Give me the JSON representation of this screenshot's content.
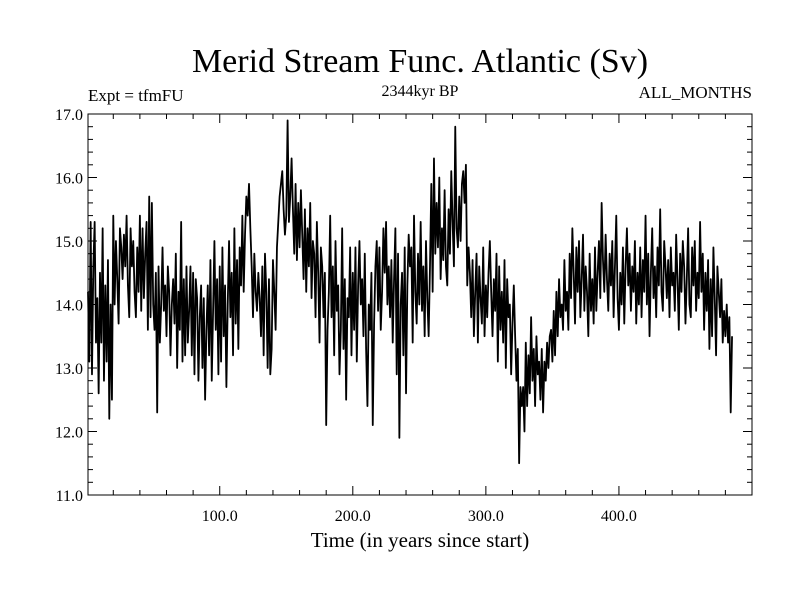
{
  "chart_data": {
    "type": "line",
    "title": "Merid Stream Func. Atlantic (Sv)",
    "subtitle_left": "Expt = tfmFU",
    "subtitle_center": "2344kyr BP",
    "subtitle_right": "ALL_MONTHS",
    "xlabel": "Time (in years since start)",
    "ylabel": "",
    "xlim": [
      1,
      500
    ],
    "ylim": [
      11.0,
      17.0
    ],
    "x_ticks": [
      100,
      200,
      300,
      400
    ],
    "x_tick_labels": [
      "100.0",
      "200.0",
      "300.0",
      "400.0"
    ],
    "y_ticks": [
      11,
      12,
      13,
      14,
      15,
      16,
      17
    ],
    "y_tick_labels": [
      "11.0",
      "12.0",
      "13.0",
      "14.0",
      "15.0",
      "16.0",
      "17.0"
    ],
    "series": [
      {
        "name": "tfmFU",
        "x_start": 1,
        "x_step": 1,
        "color": "#000000",
        "values": [
          14.2,
          13.1,
          15.3,
          12.9,
          14.6,
          15.3,
          13.4,
          14.1,
          12.6,
          14.5,
          13.4,
          15.2,
          12.8,
          14.3,
          13.1,
          14.7,
          12.2,
          14.0,
          12.5,
          15.4,
          14.0,
          15.0,
          14.4,
          13.7,
          15.2,
          14.9,
          14.4,
          15.1,
          14.6,
          15.4,
          14.3,
          13.8,
          15.2,
          14.6,
          15.0,
          14.2,
          13.8,
          14.9,
          14.2,
          15.4,
          13.9,
          15.2,
          14.1,
          14.8,
          15.3,
          13.6,
          15.7,
          13.8,
          15.6,
          14.0,
          13.6,
          14.5,
          12.3,
          14.6,
          13.4,
          14.0,
          14.9,
          13.9,
          14.3,
          13.5,
          14.6,
          14.2,
          13.2,
          14.0,
          14.4,
          13.7,
          14.8,
          13.0,
          14.2,
          13.6,
          15.3,
          13.1,
          14.4,
          13.2,
          14.6,
          13.4,
          13.9,
          14.6,
          13.2,
          14.5,
          12.9,
          14.4,
          14.1,
          12.8,
          13.8,
          14.3,
          13.0,
          14.1,
          12.5,
          13.6,
          14.3,
          13.2,
          14.7,
          12.8,
          13.9,
          15.0,
          13.6,
          14.4,
          12.9,
          14.6,
          13.1,
          14.9,
          13.5,
          14.3,
          12.7,
          14.0,
          15.0,
          13.8,
          14.5,
          13.2,
          15.2,
          13.7,
          14.7,
          13.3,
          14.9,
          14.3,
          15.4,
          14.2,
          15.1,
          15.7,
          15.4,
          15.9,
          15.2,
          14.6,
          13.8,
          14.8,
          14.2,
          13.9,
          14.5,
          14.1,
          13.5,
          14.6,
          13.2,
          14.8,
          14.2,
          13.0,
          14.4,
          12.9,
          13.3,
          14.7,
          14.2,
          13.6,
          14.9,
          15.3,
          15.7,
          15.9,
          16.1,
          15.5,
          15.1,
          15.4,
          16.9,
          15.3,
          15.7,
          16.3,
          15.5,
          14.8,
          15.9,
          14.7,
          15.6,
          14.9,
          15.8,
          15.1,
          14.4,
          15.5,
          14.2,
          15.2,
          14.6,
          15.6,
          14.1,
          15.0,
          14.8,
          13.8,
          15.3,
          14.5,
          13.4,
          14.9,
          14.6,
          13.8,
          14.5,
          12.1,
          13.6,
          14.2,
          15.4,
          13.8,
          14.6,
          13.2,
          15.0,
          13.9,
          14.3,
          12.9,
          13.6,
          15.2,
          13.3,
          14.4,
          12.5,
          14.1,
          13.8,
          14.9,
          13.2,
          14.5,
          13.6,
          14.9,
          13.1,
          14.3,
          15.0,
          14.0,
          14.4,
          13.5,
          14.8,
          13.3,
          12.4,
          14.0,
          13.6,
          14.5,
          12.1,
          13.7,
          14.6,
          15.0,
          13.9,
          14.9,
          13.6,
          14.2,
          15.2,
          14.5,
          15.3,
          14.0,
          14.6,
          13.8,
          14.7,
          13.4,
          14.4,
          15.2,
          12.9,
          14.8,
          11.9,
          14.0,
          14.5,
          13.2,
          14.9,
          12.6,
          14.3,
          15.1,
          14.6,
          14.9,
          13.4,
          15.4,
          14.2,
          13.7,
          14.8,
          14.0,
          15.3,
          13.9,
          14.6,
          13.5,
          15.0,
          14.1,
          13.5,
          14.6,
          15.9,
          14.2,
          16.3,
          14.8,
          15.6,
          14.9,
          16.0,
          14.4,
          15.2,
          14.7,
          15.8,
          14.6,
          14.3,
          15.5,
          14.8,
          16.1,
          15.3,
          14.6,
          16.8,
          15.2,
          14.9,
          15.7,
          15.0,
          15.9,
          16.1,
          15.6,
          16.2,
          14.3,
          14.9,
          14.5,
          13.8,
          14.7,
          13.5,
          14.2,
          14.8,
          13.4,
          14.6,
          14.1,
          13.7,
          14.9,
          13.5,
          14.3,
          13.8,
          14.5,
          15.0,
          14.2,
          13.5,
          14.4,
          13.9,
          14.8,
          13.1,
          14.6,
          13.6,
          14.2,
          13.4,
          14.7,
          13.0,
          14.4,
          13.8,
          14.0,
          12.9,
          13.7,
          14.3,
          13.5,
          12.8,
          13.3,
          11.5,
          12.7,
          12.4,
          12.7,
          12.0,
          13.4,
          12.4,
          13.2,
          12.6,
          13.8,
          12.8,
          13.3,
          12.4,
          13.5,
          12.9,
          13.1,
          12.5,
          13.3,
          12.3,
          13.1,
          12.8,
          13.4,
          13.0,
          13.5,
          13.6,
          13.1,
          13.9,
          13.2,
          14.2,
          13.5,
          14.4,
          13.8,
          14.0,
          13.6,
          14.7,
          13.9,
          14.2,
          13.6,
          14.8,
          14.1,
          15.2,
          14.5,
          13.7,
          14.9,
          14.2,
          15.0,
          13.8,
          14.4,
          15.1,
          13.9,
          14.6,
          14.2,
          13.5,
          14.8,
          13.9,
          14.4,
          13.7,
          14.9,
          13.9,
          14.5,
          15.0,
          14.1,
          15.6,
          14.7,
          14.2,
          15.1,
          14.4,
          13.9,
          14.8,
          14.3,
          15.0,
          13.8,
          14.6,
          15.4,
          14.1,
          13.6,
          14.5,
          14.0,
          14.9,
          13.7,
          14.6,
          15.2,
          14.3,
          14.8,
          13.9,
          14.6,
          14.2,
          15.0,
          13.7,
          14.5,
          14.0,
          14.9,
          13.8,
          14.7,
          14.2,
          15.4,
          14.0,
          14.8,
          13.5,
          14.5,
          15.2,
          14.1,
          14.6,
          13.8,
          14.9,
          14.3,
          15.5,
          14.2,
          13.9,
          15.0,
          14.6,
          14.1,
          14.7,
          13.8,
          14.9,
          14.3,
          14.5,
          13.9,
          15.1,
          14.4,
          13.6,
          14.8,
          14.2,
          15.0,
          14.6,
          13.7,
          14.4,
          15.2,
          14.0,
          13.8,
          14.9,
          14.3,
          15.0,
          13.9,
          14.5,
          14.1,
          15.3,
          14.2,
          14.8,
          13.6,
          14.5,
          13.9,
          14.7,
          13.3,
          14.4,
          13.5,
          14.9,
          14.1,
          13.2,
          14.6,
          14.2,
          13.8,
          14.4,
          13.4,
          13.9,
          13.5,
          14.0,
          13.4,
          13.8,
          12.3,
          13.5
        ]
      }
    ]
  }
}
